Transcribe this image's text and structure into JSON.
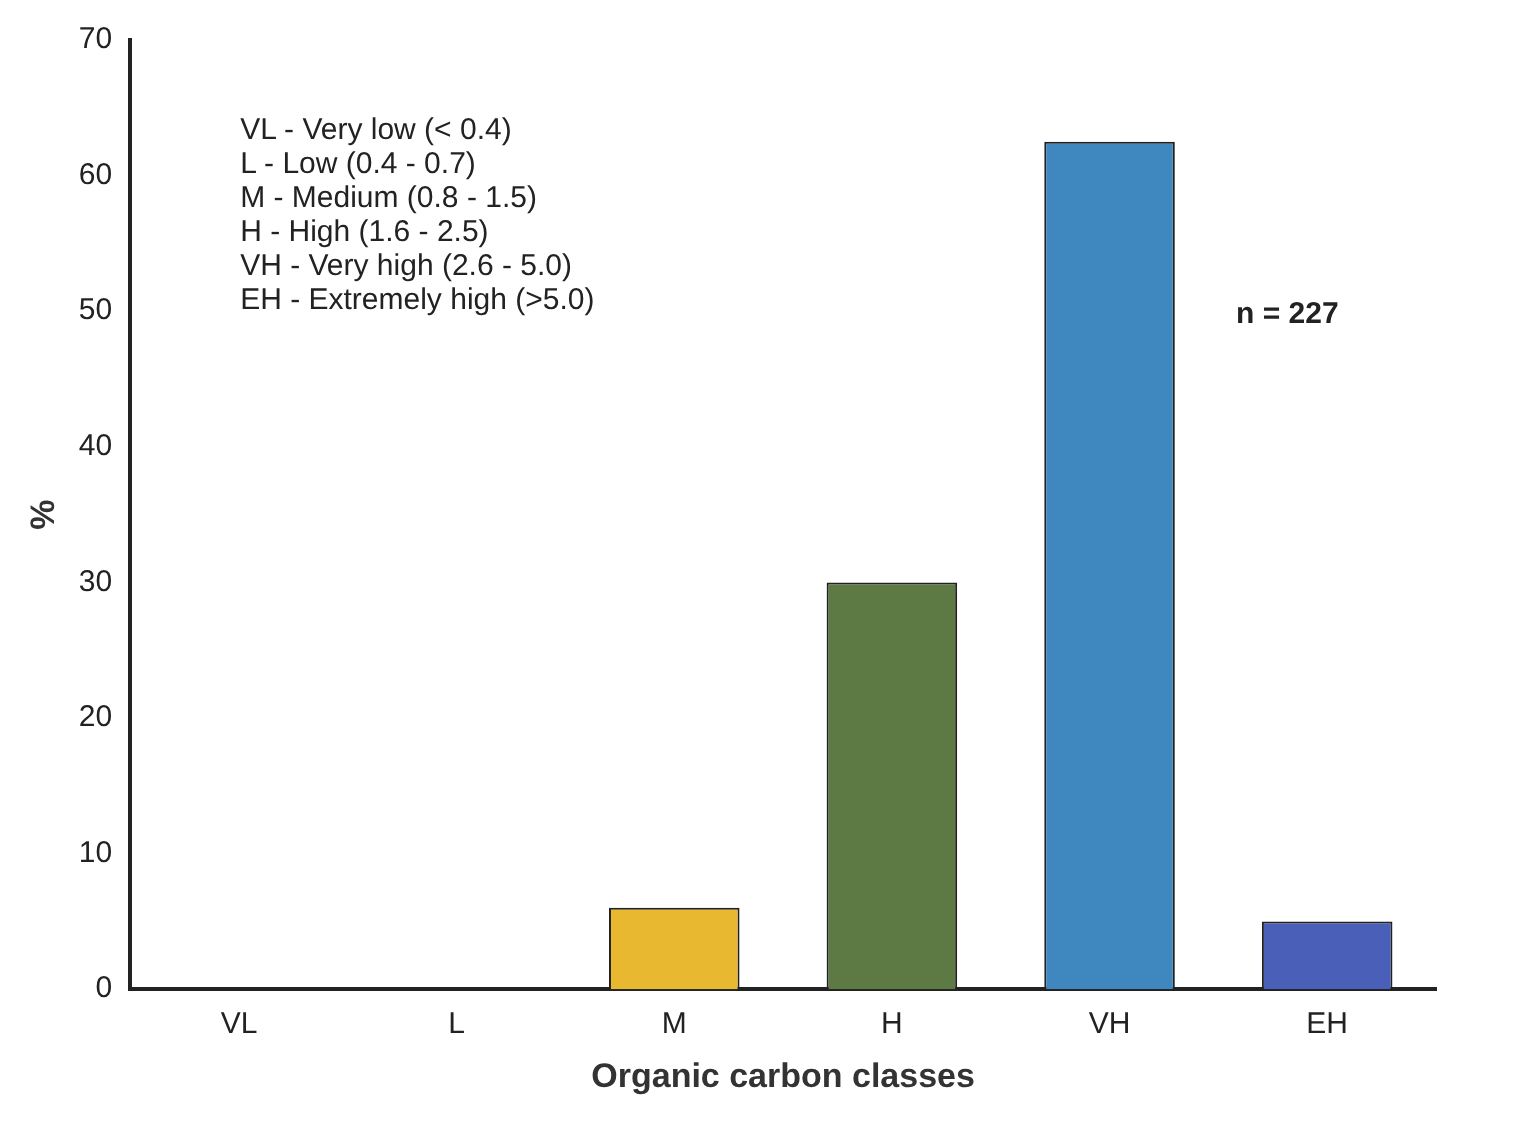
{
  "chart_data": {
    "type": "bar",
    "xlabel": "Organic carbon classes",
    "ylabel": "%",
    "categories": [
      "VL",
      "L",
      "M",
      "H",
      "VH",
      "EH"
    ],
    "values": [
      0,
      0,
      6,
      30,
      62.5,
      5
    ],
    "colors": [
      "#e8b830",
      "#e8b830",
      "#e8b830",
      "#5e7a44",
      "#3f87bf",
      "#4a5fb8"
    ],
    "ylim": [
      0,
      70
    ],
    "yticks": [
      0,
      10,
      20,
      30,
      40,
      50,
      60,
      70
    ],
    "grid": false,
    "legend": false,
    "annotations": [
      "VL - Very low (< 0.4)\nL - Low (0.4 - 0.7)\nM - Medium (0.8 - 1.5)\nH - High (1.6 - 2.5)\nVH - Very high (2.6 - 5.0)\nEH - Extremely high (>5.0)",
      "n = 227"
    ]
  }
}
